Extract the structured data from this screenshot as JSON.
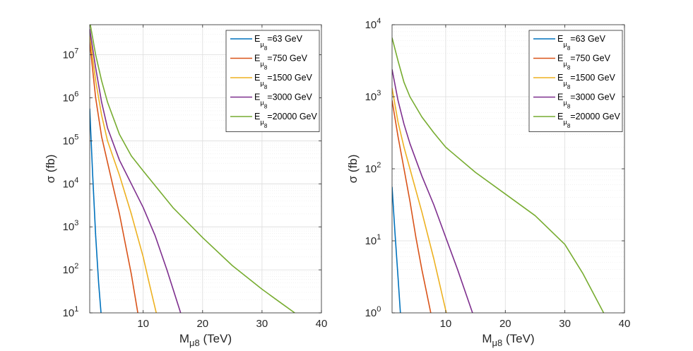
{
  "chart_data": [
    {
      "type": "line",
      "ylabel": "σ (fb)",
      "xlabel_main": "M",
      "xlabel_sub": "μ8",
      "xlabel_unit": " (TeV)",
      "xlim": [
        1,
        40
      ],
      "ylim_exp": [
        1,
        7.7
      ],
      "yscale": "log",
      "xticks": [
        10,
        20,
        30,
        40
      ],
      "yticks_exp": [
        1,
        2,
        3,
        4,
        5,
        6,
        7
      ],
      "legend_position": "top-right",
      "series": [
        {
          "name": "63 GeV",
          "energy": "=63 GeV",
          "color": "#0072BD",
          "x": [
            1,
            1.5,
            2,
            2.5,
            2.9
          ],
          "y_log10": [
            5.75,
            4.2,
            2.8,
            1.7,
            1.0
          ]
        },
        {
          "name": "750 GeV",
          "energy": "=750 GeV",
          "color": "#D95319",
          "x": [
            1,
            2,
            3,
            4,
            5,
            6,
            7,
            8,
            9.1
          ],
          "y_log10": [
            7.3,
            6.0,
            5.1,
            4.5,
            3.9,
            3.3,
            2.6,
            1.9,
            1.0
          ]
        },
        {
          "name": "1500 GeV",
          "energy": "=1500 GeV",
          "color": "#EDB120",
          "x": [
            1,
            2,
            3,
            4,
            5,
            6,
            7,
            8,
            9,
            10,
            11,
            12.2
          ],
          "y_log10": [
            7.45,
            6.4,
            5.6,
            5.0,
            4.6,
            4.2,
            3.75,
            3.3,
            2.8,
            2.3,
            1.7,
            1.0
          ]
        },
        {
          "name": "3000 GeV",
          "energy": "=3000 GeV",
          "color": "#7E2F8E",
          "x": [
            1,
            2,
            3,
            4,
            6,
            8,
            10,
            12,
            14,
            16.3
          ],
          "y_log10": [
            7.6,
            6.7,
            5.9,
            5.3,
            4.55,
            4.0,
            3.45,
            2.8,
            2.0,
            1.0
          ]
        },
        {
          "name": "20000 GeV",
          "energy": "=20000 GeV",
          "color": "#77AC30",
          "x": [
            1,
            2,
            3,
            4,
            6,
            8,
            10,
            15,
            20,
            25,
            30,
            33,
            35.5
          ],
          "y_log10": [
            7.78,
            7.0,
            6.4,
            5.9,
            5.15,
            4.65,
            4.3,
            3.45,
            2.75,
            2.1,
            1.55,
            1.25,
            1.0
          ]
        }
      ]
    },
    {
      "type": "line",
      "ylabel": "σ (fb)",
      "xlabel_main": "M",
      "xlabel_sub": "μ8",
      "xlabel_unit": " (TeV)",
      "xlim": [
        1,
        40
      ],
      "ylim_exp": [
        0,
        4
      ],
      "yscale": "log",
      "xticks": [
        10,
        20,
        30,
        40
      ],
      "yticks_exp": [
        0,
        1,
        2,
        3,
        4
      ],
      "legend_position": "top-right",
      "series": [
        {
          "name": "63 GeV",
          "energy": "=63 GeV",
          "color": "#0072BD",
          "x": [
            1,
            1.5,
            2,
            2.4
          ],
          "y_log10": [
            1.75,
            1.1,
            0.5,
            0.0
          ]
        },
        {
          "name": "750 GeV",
          "energy": "=750 GeV",
          "color": "#D95319",
          "x": [
            1,
            2,
            3,
            4,
            5,
            6,
            7.5
          ],
          "y_log10": [
            2.95,
            2.45,
            2.0,
            1.55,
            1.05,
            0.6,
            0.0
          ]
        },
        {
          "name": "1500 GeV",
          "energy": "=1500 GeV",
          "color": "#EDB120",
          "x": [
            1,
            2,
            3,
            4,
            6,
            8,
            10.1
          ],
          "y_log10": [
            3.12,
            2.65,
            2.3,
            2.0,
            1.4,
            0.75,
            0.0
          ]
        },
        {
          "name": "3000 GeV",
          "energy": "=3000 GeV",
          "color": "#7E2F8E",
          "x": [
            1,
            2,
            3,
            4,
            6,
            8,
            10,
            12,
            14.5
          ],
          "y_log10": [
            3.38,
            2.95,
            2.62,
            2.35,
            1.9,
            1.5,
            1.05,
            0.6,
            0.0
          ]
        },
        {
          "name": "20000 GeV",
          "energy": "=20000 GeV",
          "color": "#77AC30",
          "x": [
            1,
            2,
            3,
            4,
            6,
            8,
            10,
            15,
            20,
            25,
            30,
            33,
            36.5
          ],
          "y_log10": [
            3.82,
            3.5,
            3.2,
            3.0,
            2.72,
            2.5,
            2.3,
            1.95,
            1.65,
            1.35,
            0.95,
            0.55,
            0.0
          ]
        }
      ]
    }
  ]
}
